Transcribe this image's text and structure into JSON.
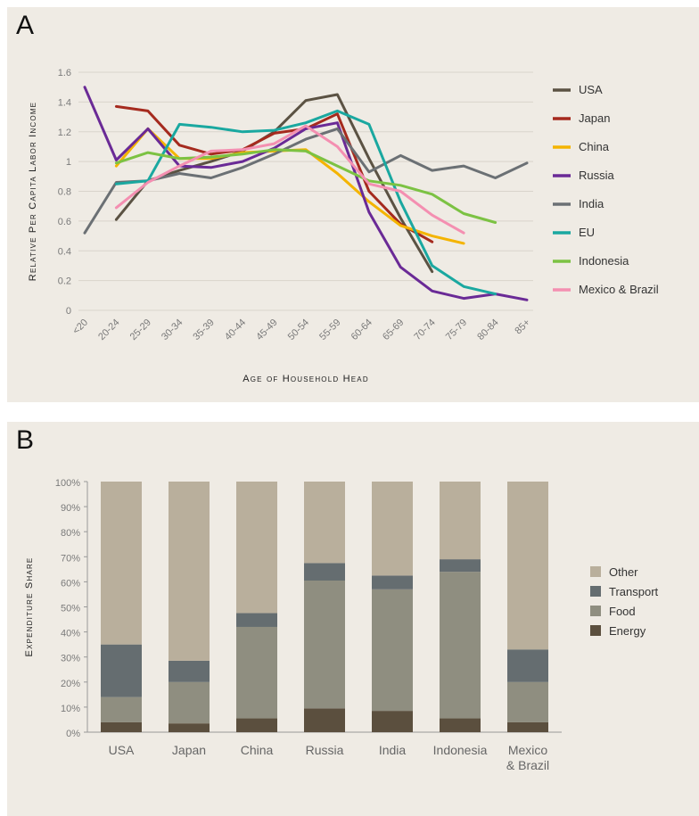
{
  "chart_data": [
    {
      "panel_label": "A",
      "type": "line",
      "xlabel": "Age of Household Head",
      "ylabel": "Relative Per Capita Labor Income",
      "categories": [
        "<20",
        "20-24",
        "25-29",
        "30-34",
        "35-39",
        "40-44",
        "45-49",
        "50-54",
        "55-59",
        "60-64",
        "65-69",
        "70-74",
        "75-79",
        "80-84",
        "85+"
      ],
      "yticks": [
        "0",
        "0.2",
        "0.4",
        "0.6",
        "0.8",
        "1",
        "1.2",
        "1.4",
        "1.6"
      ],
      "ylim": [
        0,
        1.6
      ],
      "grid": true,
      "legend_position": "right",
      "series": [
        {
          "name": "USA",
          "color": "#5b5243",
          "values": [
            null,
            0.61,
            0.87,
            0.94,
            1.0,
            1.07,
            1.2,
            1.41,
            1.45,
            1.02,
            0.62,
            0.26,
            null,
            null,
            null
          ]
        },
        {
          "name": "Japan",
          "color": "#a52a1e",
          "values": [
            null,
            1.37,
            1.34,
            1.11,
            1.05,
            1.08,
            1.19,
            1.22,
            1.32,
            0.8,
            0.58,
            0.46,
            null,
            null,
            null
          ]
        },
        {
          "name": "China",
          "color": "#f4b400",
          "values": [
            null,
            0.97,
            1.22,
            1.02,
            1.02,
            1.06,
            1.07,
            1.08,
            0.92,
            0.73,
            0.57,
            0.5,
            0.45,
            null,
            null
          ]
        },
        {
          "name": "Russia",
          "color": "#6a2a96",
          "values": [
            1.5,
            1.01,
            1.22,
            0.97,
            0.96,
            1.0,
            1.09,
            1.22,
            1.26,
            0.66,
            0.29,
            0.13,
            0.08,
            0.11,
            0.07
          ]
        },
        {
          "name": "India",
          "color": "#6b7074",
          "values": [
            0.52,
            0.86,
            0.87,
            0.92,
            0.89,
            0.96,
            1.05,
            1.15,
            1.22,
            0.93,
            1.04,
            0.94,
            0.97,
            0.89,
            0.99
          ]
        },
        {
          "name": "EU",
          "color": "#1aa8a0",
          "values": [
            null,
            0.85,
            0.87,
            1.25,
            1.23,
            1.2,
            1.21,
            1.26,
            1.34,
            1.25,
            0.73,
            0.3,
            0.16,
            0.11,
            null
          ]
        },
        {
          "name": "Indonesia",
          "color": "#7cc243",
          "values": [
            null,
            0.99,
            1.06,
            1.02,
            1.03,
            1.05,
            1.08,
            1.07,
            0.97,
            0.87,
            0.84,
            0.78,
            0.65,
            0.59,
            null
          ]
        },
        {
          "name": "Mexico & Brazil",
          "color": "#f48fb1",
          "values": [
            null,
            0.69,
            0.86,
            0.97,
            1.07,
            1.08,
            1.12,
            1.24,
            1.1,
            0.85,
            0.8,
            0.64,
            0.52,
            null,
            null
          ]
        }
      ]
    },
    {
      "panel_label": "B",
      "type": "bar",
      "stacked": true,
      "xlabel": "",
      "ylabel": "Expenditure Share",
      "categories": [
        "USA",
        "Japan",
        "China",
        "Russia",
        "India",
        "Indonesia",
        "Mexico & Brazil"
      ],
      "category_lines": [
        [
          "USA"
        ],
        [
          "Japan"
        ],
        [
          "China"
        ],
        [
          "Russia"
        ],
        [
          "India"
        ],
        [
          "Indonesia"
        ],
        [
          "Mexico",
          "& Brazil"
        ]
      ],
      "yticks": [
        "0%",
        "10%",
        "20%",
        "30%",
        "40%",
        "50%",
        "60%",
        "70%",
        "80%",
        "90%",
        "100%"
      ],
      "ylim": [
        0,
        100
      ],
      "grid": false,
      "legend_position": "right",
      "legend_order": [
        "Other",
        "Transport",
        "Food",
        "Energy"
      ],
      "series": [
        {
          "name": "Energy",
          "color": "#5b4f3e",
          "values": [
            4,
            3.5,
            5.5,
            9.5,
            8.5,
            5.5,
            4
          ]
        },
        {
          "name": "Food",
          "color": "#8f8e80",
          "values": [
            10,
            16.5,
            36.5,
            51,
            48.5,
            58.5,
            16
          ]
        },
        {
          "name": "Transport",
          "color": "#656d70",
          "values": [
            21,
            8.5,
            5.5,
            7,
            5.5,
            5,
            13
          ]
        },
        {
          "name": "Other",
          "color": "#b9af9c",
          "values": [
            65,
            71.5,
            52.5,
            32.5,
            37.5,
            31,
            67
          ]
        }
      ]
    }
  ]
}
